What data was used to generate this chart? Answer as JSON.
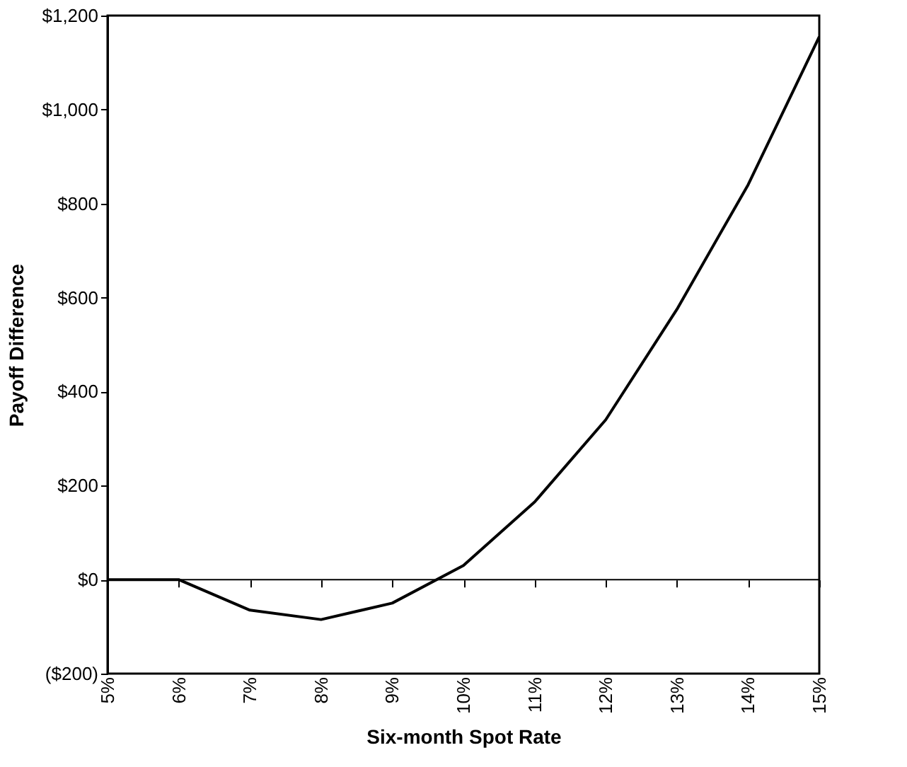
{
  "chart_data": {
    "type": "line",
    "xlabel": "Six-month Spot Rate",
    "ylabel": "Payoff Difference",
    "x": [
      5,
      6,
      7,
      8,
      9,
      10,
      11,
      12,
      13,
      14,
      15
    ],
    "series": [
      {
        "color": "#000000",
        "values": [
          0,
          0,
          -65,
          -85,
          -50,
          30,
          165,
          340,
          575,
          840,
          1155
        ]
      }
    ],
    "xlim": [
      5,
      15
    ],
    "ylim": [
      -200,
      1200
    ],
    "xticks": [
      {
        "value": 5,
        "label": "5%"
      },
      {
        "value": 6,
        "label": "6%"
      },
      {
        "value": 7,
        "label": "7%"
      },
      {
        "value": 8,
        "label": "8%"
      },
      {
        "value": 9,
        "label": "9%"
      },
      {
        "value": 10,
        "label": "10%"
      },
      {
        "value": 11,
        "label": "11%"
      },
      {
        "value": 12,
        "label": "12%"
      },
      {
        "value": 13,
        "label": "13%"
      },
      {
        "value": 14,
        "label": "14%"
      },
      {
        "value": 15,
        "label": "15%"
      }
    ],
    "yticks": [
      {
        "value": -200,
        "label": "($200)"
      },
      {
        "value": 0,
        "label": "$0"
      },
      {
        "value": 200,
        "label": "$200"
      },
      {
        "value": 400,
        "label": "$400"
      },
      {
        "value": 600,
        "label": "$600"
      },
      {
        "value": 800,
        "label": "$800"
      },
      {
        "value": 1000,
        "label": "$1,000"
      },
      {
        "value": 1200,
        "label": "$1,200"
      }
    ],
    "ref_lines": [
      {
        "axis": "y",
        "value": 0,
        "color": "#000000"
      }
    ],
    "grid": false,
    "marker": "none",
    "line_style": "solid"
  }
}
